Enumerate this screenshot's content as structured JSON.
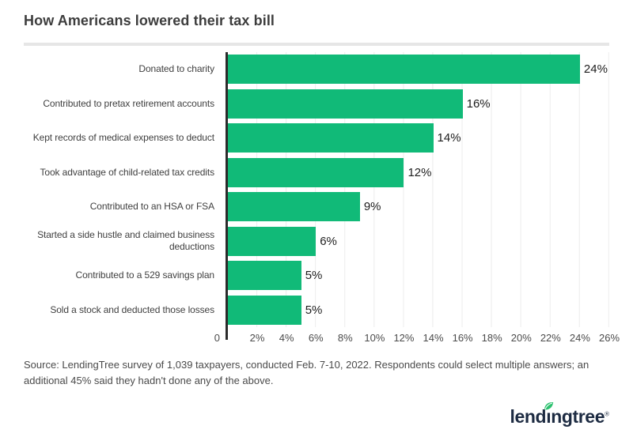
{
  "page": {
    "title": "How Americans lowered their tax bill"
  },
  "chart_data": {
    "type": "bar",
    "orientation": "horizontal",
    "title": "How Americans lowered their tax bill",
    "categories": [
      "Donated to charity",
      "Contributed to pretax retirement accounts",
      "Kept records of medical expenses to deduct",
      "Took advantage of child-related tax credits",
      "Contributed to an HSA or FSA",
      "Started a side hustle and claimed business deductions",
      "Contributed to a 529 savings plan",
      "Sold a stock and deducted those losses"
    ],
    "values": [
      24,
      16,
      14,
      12,
      9,
      6,
      5,
      5
    ],
    "value_labels": [
      "24%",
      "16%",
      "14%",
      "12%",
      "9%",
      "6%",
      "5%",
      "5%"
    ],
    "xlabel": "",
    "ylabel": "",
    "xlim": [
      0,
      26
    ],
    "x_ticks": [
      "0",
      "2%",
      "4%",
      "6%",
      "8%",
      "10%",
      "12%",
      "14%",
      "16%",
      "18%",
      "20%",
      "22%",
      "24%",
      "26%"
    ],
    "grid": "vertical",
    "legend": "none",
    "bar_color": "#11ba78",
    "axis_color": "#2b2b2b",
    "gridline_color": "#ececec"
  },
  "footer": {
    "source_text": "Source: LendingTree survey of 1,039 taxpayers, conducted Feb. 7-10, 2022. Respondents could select multiple answers; an additional 45% said they hadn't done any of the above."
  },
  "logo": {
    "brand": "lendingtree",
    "part1": "lend",
    "dotless_i": "ı",
    "part2": "ngtree",
    "registered_mark": "®",
    "navy_color": "#1d2b42",
    "leaf_color": "#2bc16e"
  }
}
